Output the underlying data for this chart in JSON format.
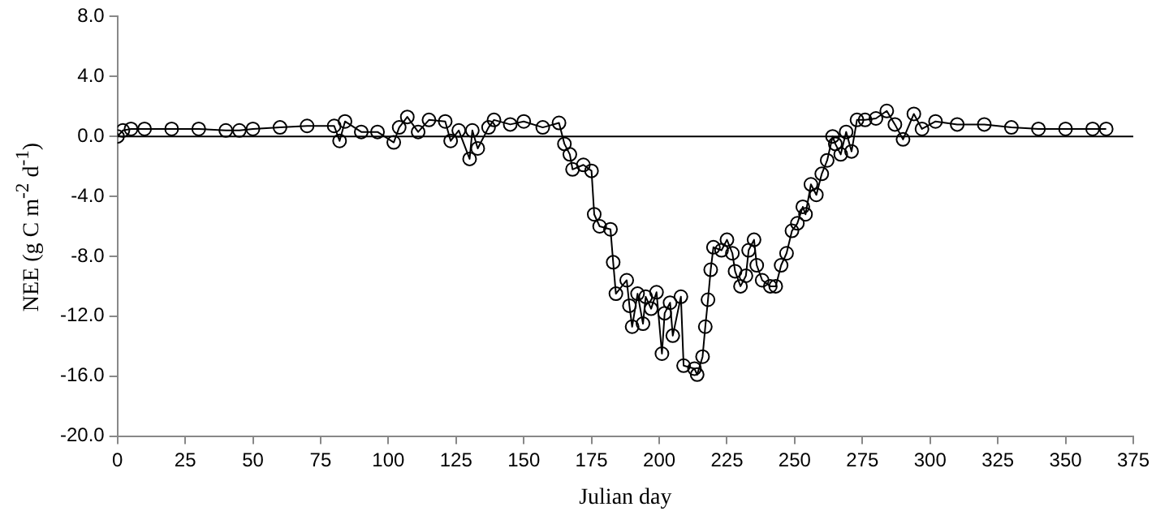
{
  "chart_data": {
    "type": "line",
    "xlabel": "Julian day",
    "ylabel": "NEE (g C m$^{-2}$ d$^{-1}$)",
    "xlim": [
      0,
      375
    ],
    "xticks": [
      0,
      25,
      50,
      75,
      100,
      125,
      150,
      175,
      200,
      225,
      250,
      275,
      300,
      325,
      350,
      375
    ],
    "ylim": [
      -20,
      8
    ],
    "yticks": [
      {
        "value": -20,
        "label": "-20.0"
      },
      {
        "value": -16,
        "label": "-16.0"
      },
      {
        "value": -12,
        "label": "-12.0"
      },
      {
        "value": -8,
        "label": "-8.0"
      },
      {
        "value": -4,
        "label": "-4.0"
      },
      {
        "value": 0,
        "label": "0.0"
      },
      {
        "value": 4,
        "label": "4.0"
      },
      {
        "value": 8,
        "label": "8.0"
      }
    ],
    "grid": false,
    "legend": false,
    "marker": "circle",
    "line_style": "solid",
    "ref_lines": [
      {
        "axis": "y",
        "value": 0,
        "color": "#000000"
      }
    ],
    "series": [
      {
        "color": "#000000",
        "x": [
          0,
          2,
          5,
          10,
          20,
          30,
          40,
          45,
          50,
          60,
          70,
          80,
          82,
          84,
          90,
          96,
          102,
          104,
          107,
          111,
          115,
          121,
          123,
          126,
          130,
          131,
          133,
          137,
          139,
          145,
          150,
          157,
          163,
          165,
          167,
          168,
          172,
          175,
          176,
          178,
          182,
          183,
          184,
          188,
          189,
          190,
          192,
          194,
          195,
          197,
          199,
          201,
          202,
          204,
          205,
          208,
          209,
          213,
          214,
          216,
          217,
          218,
          219,
          220,
          223,
          225,
          227,
          228,
          230,
          232,
          233,
          235,
          236,
          238,
          241,
          243,
          245,
          247,
          249,
          251,
          253,
          254,
          256,
          258,
          260,
          262,
          264,
          265,
          267,
          269,
          271,
          273,
          276,
          280,
          284,
          287,
          290,
          294,
          297,
          302,
          310,
          320,
          330,
          340,
          350,
          360,
          365
        ],
        "values": [
          0.0,
          0.4,
          0.5,
          0.5,
          0.5,
          0.5,
          0.4,
          0.4,
          0.5,
          0.6,
          0.7,
          0.7,
          -0.3,
          1.0,
          0.3,
          0.3,
          -0.4,
          0.6,
          1.3,
          0.3,
          1.1,
          1.0,
          -0.3,
          0.4,
          -1.5,
          0.4,
          -0.8,
          0.6,
          1.1,
          0.8,
          1.0,
          0.6,
          0.9,
          -0.5,
          -1.2,
          -2.2,
          -1.9,
          -2.3,
          -5.2,
          -6.0,
          -6.2,
          -8.4,
          -10.5,
          -9.6,
          -11.3,
          -12.7,
          -10.5,
          -12.5,
          -10.7,
          -11.5,
          -10.4,
          -14.5,
          -11.8,
          -11.1,
          -13.3,
          -10.7,
          -15.3,
          -15.5,
          -15.9,
          -14.7,
          -12.7,
          -10.9,
          -8.9,
          -7.4,
          -7.6,
          -6.9,
          -7.8,
          -9.0,
          -10.0,
          -9.3,
          -7.6,
          -6.9,
          -8.6,
          -9.6,
          -10.0,
          -10.0,
          -8.6,
          -7.8,
          -6.3,
          -5.8,
          -4.7,
          -5.2,
          -3.2,
          -3.9,
          -2.5,
          -1.6,
          0.0,
          -0.5,
          -1.2,
          0.3,
          -1.0,
          1.1,
          1.1,
          1.2,
          1.7,
          0.8,
          -0.2,
          1.5,
          0.5,
          1.0,
          0.8,
          0.8,
          0.6,
          0.5,
          0.5,
          0.5,
          0.5
        ]
      }
    ]
  }
}
